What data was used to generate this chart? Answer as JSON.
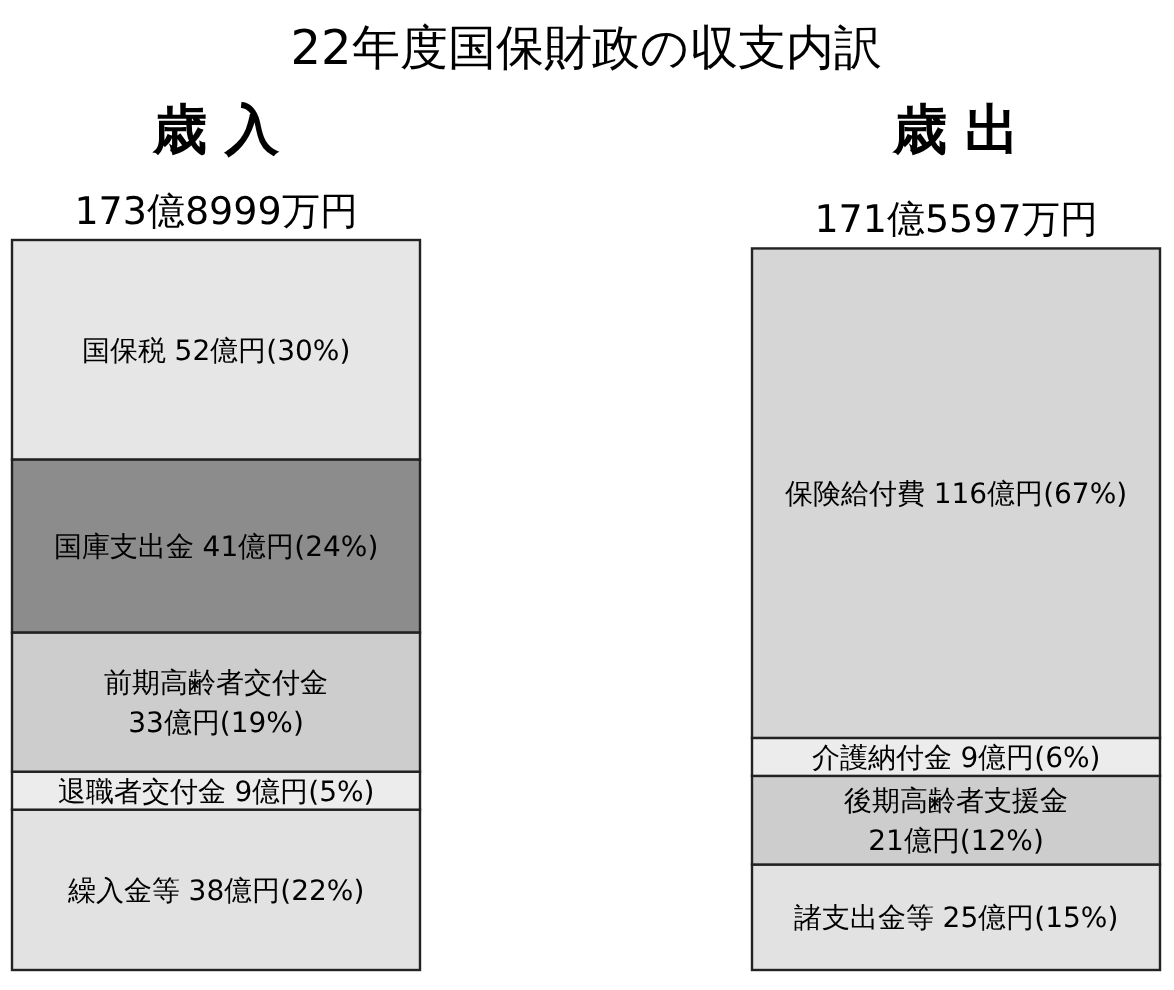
{
  "chart_data": [
    {
      "type": "bar",
      "stacked": true,
      "title": "22年度国保財政の収支内訳",
      "categories": [
        "歳 入"
      ],
      "totals": [
        "173億8999万円"
      ],
      "series": [
        {
          "name": "繰入金等",
          "color": "#e2e2e2",
          "values": [
            38
          ],
          "value_labels": [
            "38億円(22%)"
          ]
        },
        {
          "name": "退職者交付金",
          "color": "#ececec",
          "values": [
            9
          ],
          "value_labels": [
            "9億円(5%)"
          ]
        },
        {
          "name": "前期高齢者交付金",
          "color": "#cdcdcd",
          "values": [
            33
          ],
          "value_labels": [
            "33億円(19%)"
          ]
        },
        {
          "name": "国庫支出金",
          "color": "#8c8c8c",
          "values": [
            41
          ],
          "value_labels": [
            "41億円(24%)"
          ]
        },
        {
          "name": "国保税",
          "color": "#e6e6e6",
          "values": [
            52
          ],
          "value_labels": [
            "52億円(30%)"
          ]
        }
      ]
    },
    {
      "type": "bar",
      "stacked": true,
      "categories": [
        "歳 出"
      ],
      "totals": [
        "171億5597万円"
      ],
      "series": [
        {
          "name": "諸支出金等",
          "color": "#e2e2e2",
          "values": [
            25
          ],
          "value_labels": [
            "25億円(15%)"
          ]
        },
        {
          "name": "後期高齢者支援金",
          "color": "#cdcdcd",
          "values": [
            21
          ],
          "value_labels": [
            "21億円(12%)"
          ]
        },
        {
          "name": "介護納付金",
          "color": "#ececec",
          "values": [
            9
          ],
          "value_labels": [
            "9億円(6%)"
          ]
        },
        {
          "name": "保険給付費",
          "color": "#d6d6d6",
          "values": [
            116
          ],
          "value_labels": [
            "116億円(67%)"
          ]
        }
      ]
    }
  ]
}
